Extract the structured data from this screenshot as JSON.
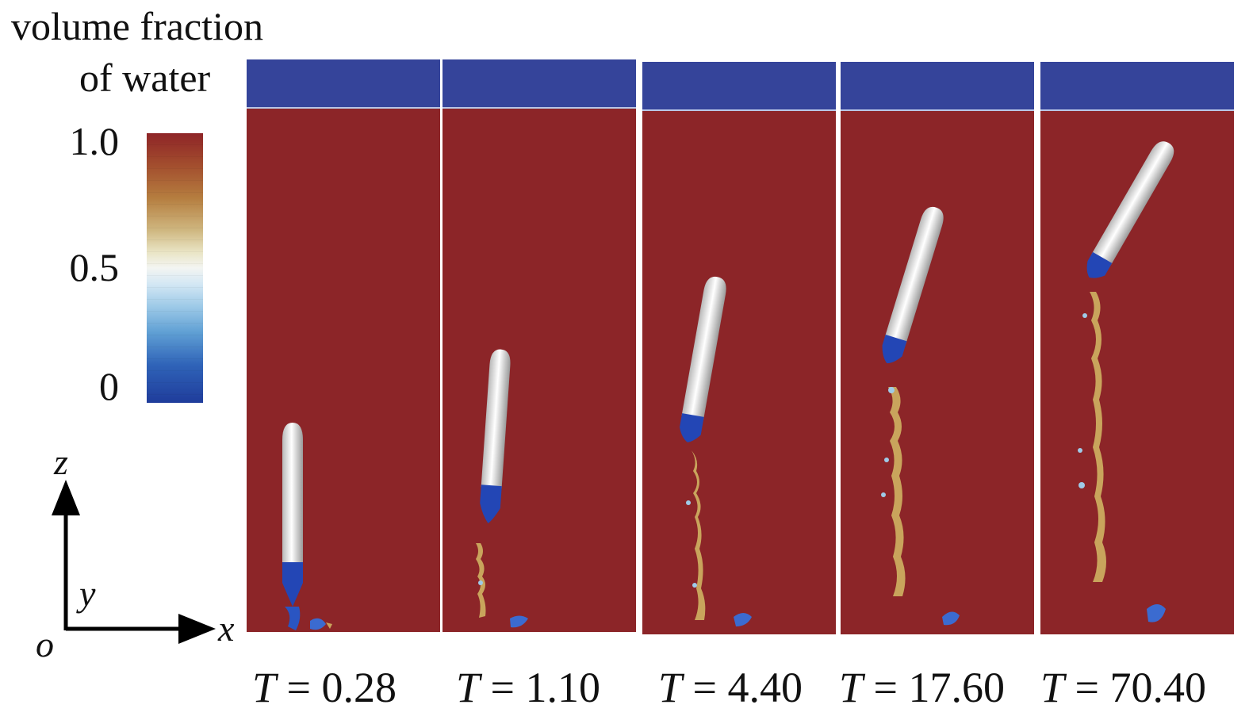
{
  "legend": {
    "title_line1": "volume fraction",
    "title_line2": "of water",
    "ticks": [
      "1.0",
      "0.5",
      "0"
    ],
    "range": [
      0,
      1
    ],
    "colors": {
      "water": "#8c2528",
      "air": "#35449a",
      "mid": "#f3f5f2"
    }
  },
  "axes": {
    "z": "z",
    "y": "y",
    "x": "x",
    "origin": "o"
  },
  "panels": [
    {
      "t_symbol": "T",
      "t_value": "0.28"
    },
    {
      "t_symbol": "T",
      "t_value": "1.10"
    },
    {
      "t_symbol": "T",
      "t_value": "4.40"
    },
    {
      "t_symbol": "T",
      "t_value": "17.60"
    },
    {
      "t_symbol": "T",
      "t_value": "70.40"
    }
  ]
}
